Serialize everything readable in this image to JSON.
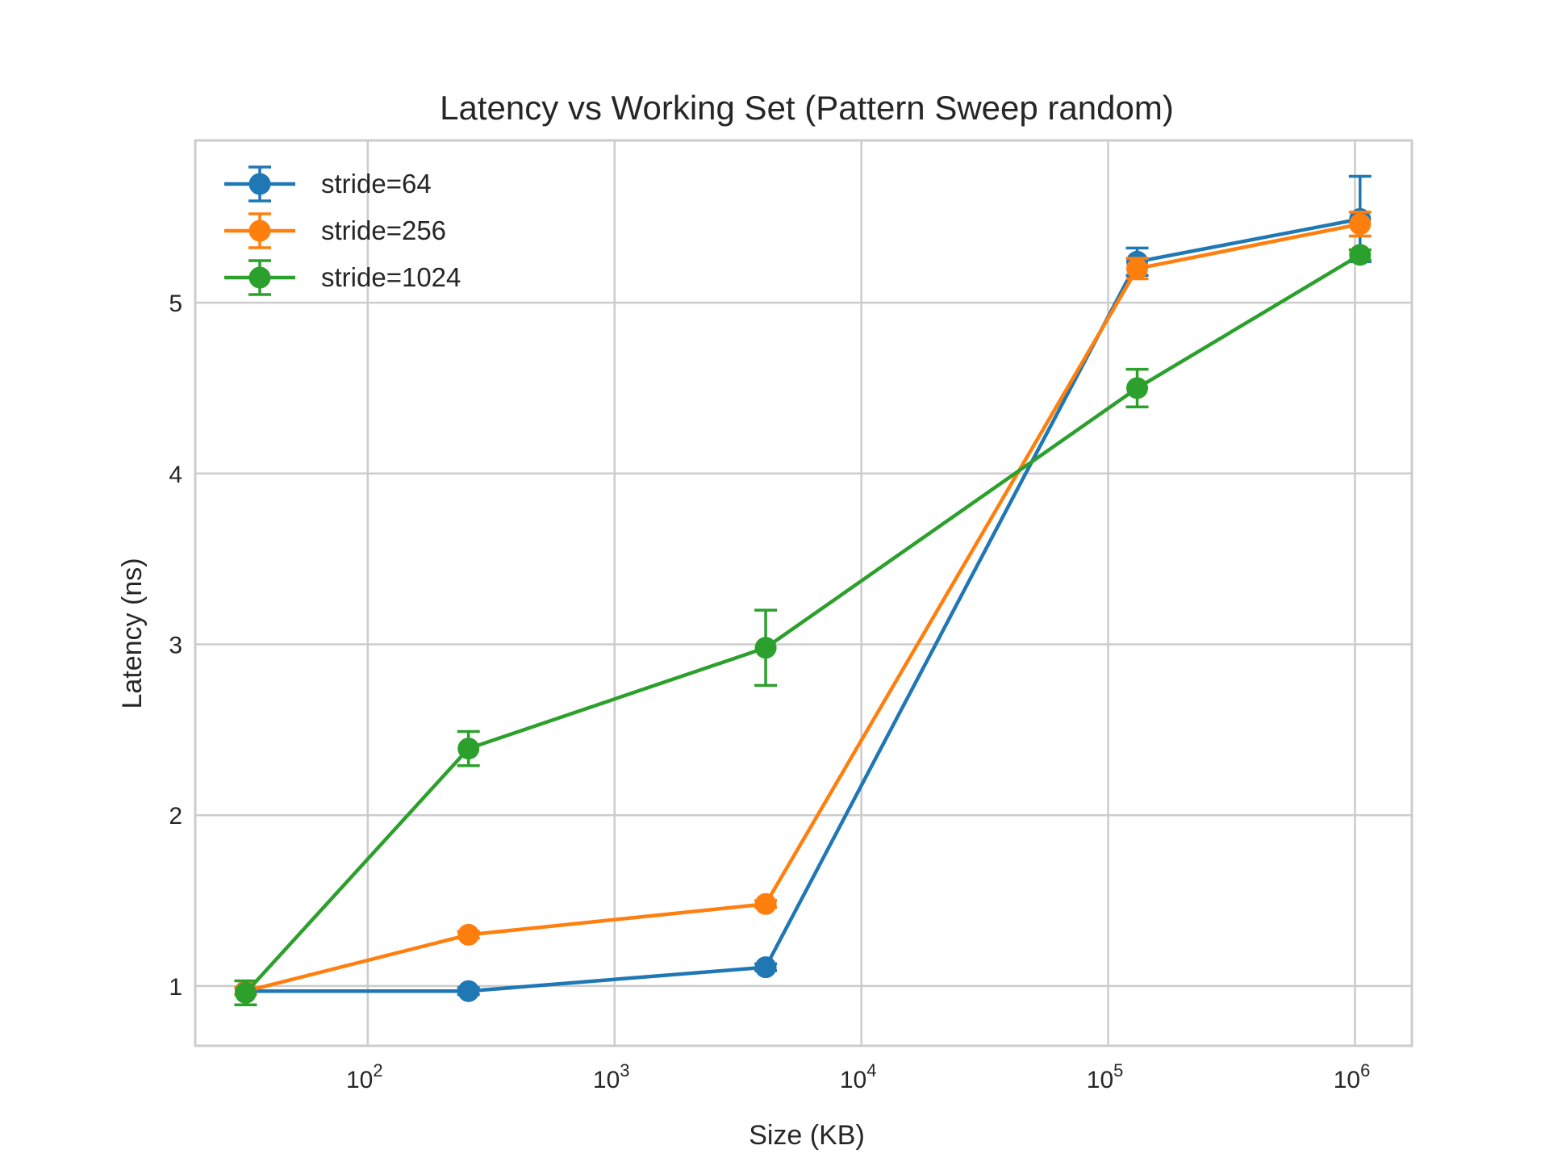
{
  "chart_data": {
    "type": "line",
    "title": "Latency vs Working Set (Pattern Sweep random)",
    "xlabel": "Size (KB)",
    "ylabel": "Latency (ns)",
    "x_scale": "log",
    "xlim": [
      20,
      1700000
    ],
    "ylim": [
      0.65,
      5.95
    ],
    "x_ticks": [
      {
        "value": 100,
        "base": "10",
        "exp": "2"
      },
      {
        "value": 1000,
        "base": "10",
        "exp": "3"
      },
      {
        "value": 10000,
        "base": "10",
        "exp": "4"
      },
      {
        "value": 100000,
        "base": "10",
        "exp": "5"
      },
      {
        "value": 1000000,
        "base": "10",
        "exp": "6"
      }
    ],
    "y_ticks": [
      1,
      2,
      3,
      4,
      5
    ],
    "grid": true,
    "legend_position": "top-left",
    "x": [
      32,
      256,
      4096,
      131072,
      1048576
    ],
    "series": [
      {
        "name": "stride=64",
        "color": "#1f77b4",
        "values": [
          0.97,
          0.97,
          1.11,
          5.24,
          5.49
        ],
        "errors": [
          0.02,
          0.02,
          0.02,
          0.08,
          0.25
        ]
      },
      {
        "name": "stride=256",
        "color": "#ff7f0e",
        "values": [
          0.97,
          1.3,
          1.48,
          5.2,
          5.46
        ],
        "errors": [
          0.02,
          0.02,
          0.02,
          0.06,
          0.07
        ]
      },
      {
        "name": "stride=1024",
        "color": "#2ca02c",
        "values": [
          0.96,
          2.39,
          2.98,
          4.5,
          5.28
        ],
        "errors": [
          0.07,
          0.1,
          0.22,
          0.11,
          0.03
        ]
      }
    ]
  }
}
